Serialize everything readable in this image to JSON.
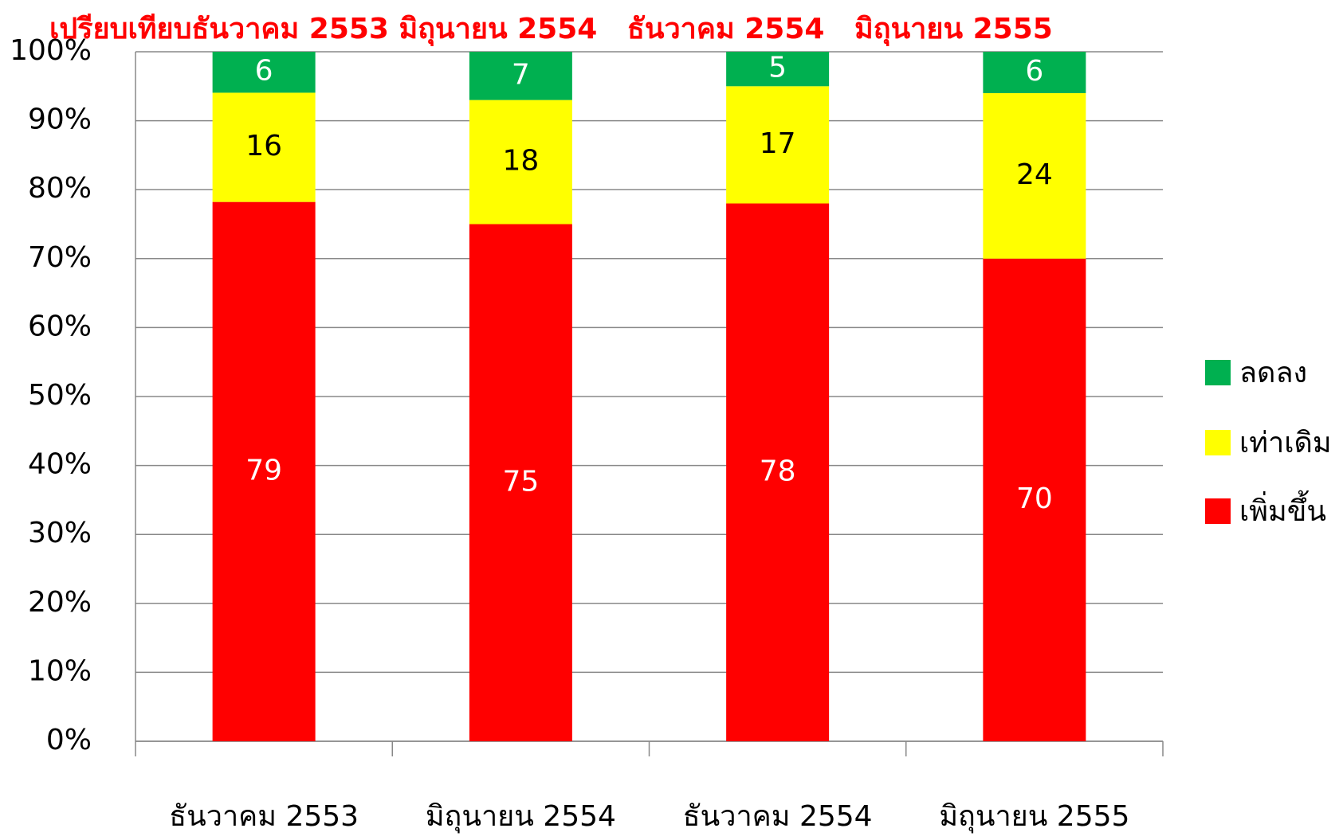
{
  "chart_data": {
    "type": "bar",
    "stacking": "percent",
    "title": "เปรียบเทียบธันวาคม 2553 มิถุนายน 2554   ธันวาคม 2554   มิถุนายน 2555",
    "categories": [
      "ธันวาคม 2553",
      "มิถุนายน 2554",
      "ธันวาคม 2554",
      "มิถุนายน 2555"
    ],
    "series": [
      {
        "name": "เพิ่มขึ้น",
        "color": "#ff0000",
        "label_color": "#ffffff",
        "values": [
          79,
          75,
          78,
          70
        ]
      },
      {
        "name": "เท่าเดิม",
        "color": "#ffff00",
        "label_color": "#000000",
        "values": [
          16,
          18,
          17,
          24
        ]
      },
      {
        "name": "ลดลง",
        "color": "#00b050",
        "label_color": "#ffffff",
        "values": [
          6,
          7,
          5,
          6
        ]
      }
    ],
    "ylim": [
      0,
      100
    ],
    "yticks": [
      {
        "value": 0,
        "label": "0%"
      },
      {
        "value": 10,
        "label": "10%"
      },
      {
        "value": 20,
        "label": "20%"
      },
      {
        "value": 30,
        "label": "30%"
      },
      {
        "value": 40,
        "label": "40%"
      },
      {
        "value": 50,
        "label": "50%"
      },
      {
        "value": 60,
        "label": "60%"
      },
      {
        "value": 70,
        "label": "70%"
      },
      {
        "value": 80,
        "label": "80%"
      },
      {
        "value": 90,
        "label": "90%"
      },
      {
        "value": 100,
        "label": "100%"
      }
    ],
    "grid": true,
    "legend": "right"
  }
}
